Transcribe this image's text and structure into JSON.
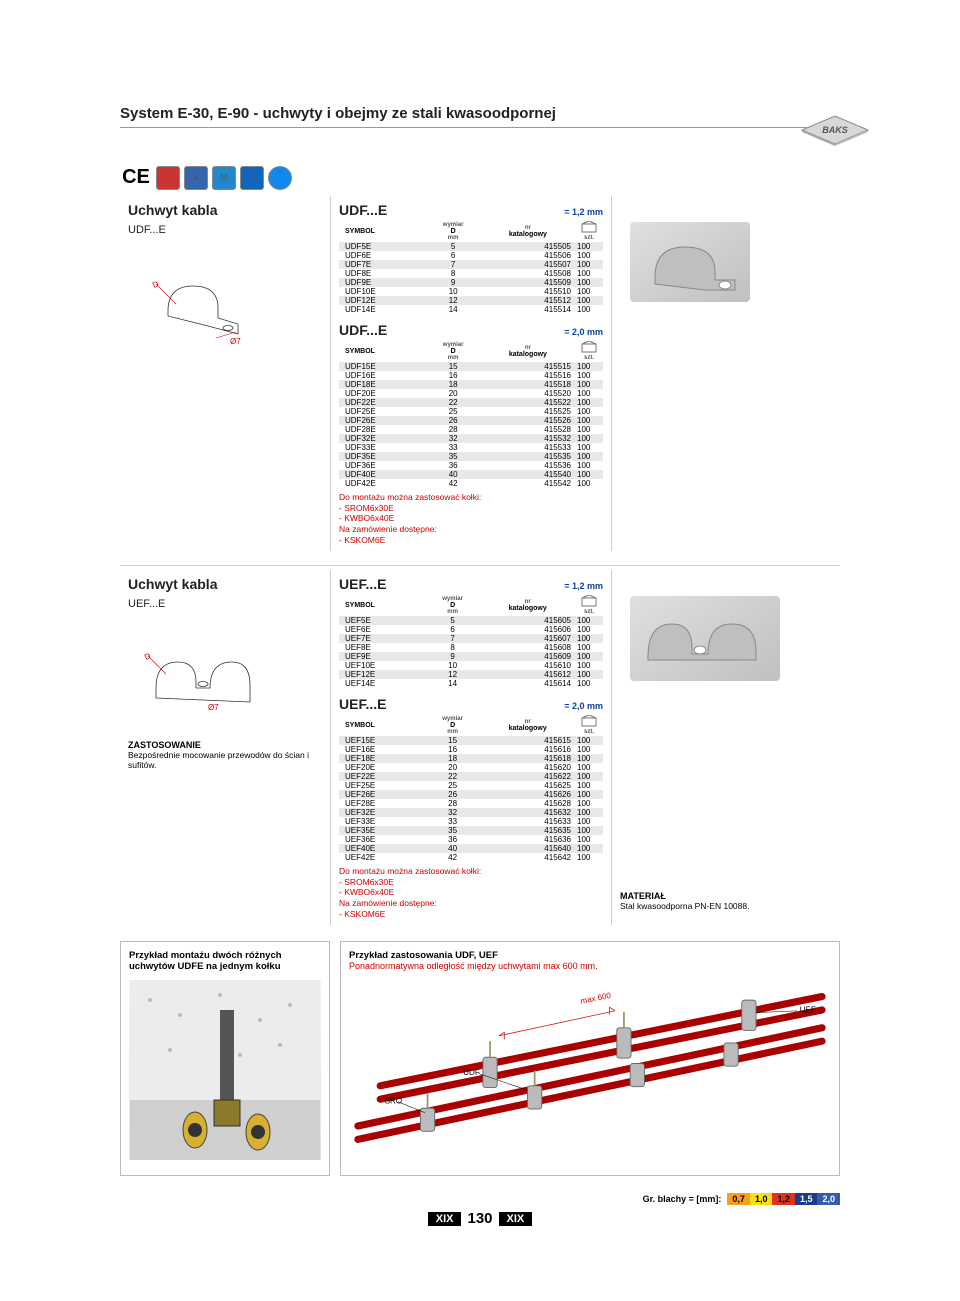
{
  "page_title": "System E-30, E-90 - uchwyty i obejmy ze stali kwasoodpornej",
  "brand": "BAKS",
  "cert_labels": [
    "CE",
    "",
    "▲",
    "M",
    "I",
    ""
  ],
  "product1": {
    "title": "Uchwyt kabla",
    "code": "UDF...E",
    "groups": [
      {
        "title": "UDF...E",
        "thickness": "= 1,2 mm",
        "thickness_color": "#1040a0",
        "headers": {
          "sym": "SYMBOL",
          "d_top": "wymiar",
          "d": "D",
          "d_sub": "mm",
          "kat_top": "nr",
          "kat": "katalogowy",
          "pack": "szt."
        },
        "rows": [
          {
            "sym": "UDF5E",
            "d": "5",
            "kat": "415505",
            "pack": "100"
          },
          {
            "sym": "UDF6E",
            "d": "6",
            "kat": "415506",
            "pack": "100"
          },
          {
            "sym": "UDF7E",
            "d": "7",
            "kat": "415507",
            "pack": "100"
          },
          {
            "sym": "UDF8E",
            "d": "8",
            "kat": "415508",
            "pack": "100"
          },
          {
            "sym": "UDF9E",
            "d": "9",
            "kat": "415509",
            "pack": "100"
          },
          {
            "sym": "UDF10E",
            "d": "10",
            "kat": "415510",
            "pack": "100"
          },
          {
            "sym": "UDF12E",
            "d": "12",
            "kat": "415512",
            "pack": "100"
          },
          {
            "sym": "UDF14E",
            "d": "14",
            "kat": "415514",
            "pack": "100"
          }
        ]
      },
      {
        "title": "UDF...E",
        "thickness": "= 2,0 mm",
        "thickness_color": "#1040a0",
        "rows": [
          {
            "sym": "UDF15E",
            "d": "15",
            "kat": "415515",
            "pack": "100"
          },
          {
            "sym": "UDF16E",
            "d": "16",
            "kat": "415516",
            "pack": "100"
          },
          {
            "sym": "UDF18E",
            "d": "18",
            "kat": "415518",
            "pack": "100"
          },
          {
            "sym": "UDF20E",
            "d": "20",
            "kat": "415520",
            "pack": "100"
          },
          {
            "sym": "UDF22E",
            "d": "22",
            "kat": "415522",
            "pack": "100"
          },
          {
            "sym": "UDF25E",
            "d": "25",
            "kat": "415525",
            "pack": "100"
          },
          {
            "sym": "UDF26E",
            "d": "26",
            "kat": "415526",
            "pack": "100"
          },
          {
            "sym": "UDF28E",
            "d": "28",
            "kat": "415528",
            "pack": "100"
          },
          {
            "sym": "UDF32E",
            "d": "32",
            "kat": "415532",
            "pack": "100"
          },
          {
            "sym": "UDF33E",
            "d": "33",
            "kat": "415533",
            "pack": "100"
          },
          {
            "sym": "UDF35E",
            "d": "35",
            "kat": "415535",
            "pack": "100"
          },
          {
            "sym": "UDF36E",
            "d": "36",
            "kat": "415536",
            "pack": "100"
          },
          {
            "sym": "UDF40E",
            "d": "40",
            "kat": "415540",
            "pack": "100"
          },
          {
            "sym": "UDF42E",
            "d": "42",
            "kat": "415542",
            "pack": "100"
          }
        ]
      }
    ],
    "notes": {
      "l1": "Do montażu można zastosować kołki:",
      "l2": "- SROM6x30E",
      "l3": "- KWBO6x40E",
      "l4": "Na zamówienie dostępne:",
      "l5": "- KSKOM6E"
    }
  },
  "product2": {
    "title": "Uchwyt kabla",
    "code": "UEF...E",
    "groups": [
      {
        "title": "UEF...E",
        "thickness": "= 1,2 mm",
        "thickness_color": "#1040a0",
        "rows": [
          {
            "sym": "UEF5E",
            "d": "5",
            "kat": "415605",
            "pack": "100"
          },
          {
            "sym": "UEF6E",
            "d": "6",
            "kat": "415606",
            "pack": "100"
          },
          {
            "sym": "UEF7E",
            "d": "7",
            "kat": "415607",
            "pack": "100"
          },
          {
            "sym": "UEF8E",
            "d": "8",
            "kat": "415608",
            "pack": "100"
          },
          {
            "sym": "UEF9E",
            "d": "9",
            "kat": "415609",
            "pack": "100"
          },
          {
            "sym": "UEF10E",
            "d": "10",
            "kat": "415610",
            "pack": "100"
          },
          {
            "sym": "UEF12E",
            "d": "12",
            "kat": "415612",
            "pack": "100"
          },
          {
            "sym": "UEF14E",
            "d": "14",
            "kat": "415614",
            "pack": "100"
          }
        ]
      },
      {
        "title": "UEF...E",
        "thickness": "= 2,0 mm",
        "thickness_color": "#1040a0",
        "rows": [
          {
            "sym": "UEF15E",
            "d": "15",
            "kat": "415615",
            "pack": "100"
          },
          {
            "sym": "UEF16E",
            "d": "16",
            "kat": "415616",
            "pack": "100"
          },
          {
            "sym": "UEF18E",
            "d": "18",
            "kat": "415618",
            "pack": "100"
          },
          {
            "sym": "UEF20E",
            "d": "20",
            "kat": "415620",
            "pack": "100"
          },
          {
            "sym": "UEF22E",
            "d": "22",
            "kat": "415622",
            "pack": "100"
          },
          {
            "sym": "UEF25E",
            "d": "25",
            "kat": "415625",
            "pack": "100"
          },
          {
            "sym": "UEF26E",
            "d": "26",
            "kat": "415626",
            "pack": "100"
          },
          {
            "sym": "UEF28E",
            "d": "28",
            "kat": "415628",
            "pack": "100"
          },
          {
            "sym": "UEF32E",
            "d": "32",
            "kat": "415632",
            "pack": "100"
          },
          {
            "sym": "UEF33E",
            "d": "33",
            "kat": "415633",
            "pack": "100"
          },
          {
            "sym": "UEF35E",
            "d": "35",
            "kat": "415635",
            "pack": "100"
          },
          {
            "sym": "UEF36E",
            "d": "36",
            "kat": "415636",
            "pack": "100"
          },
          {
            "sym": "UEF40E",
            "d": "40",
            "kat": "415640",
            "pack": "100"
          },
          {
            "sym": "UEF42E",
            "d": "42",
            "kat": "415642",
            "pack": "100"
          }
        ]
      }
    ],
    "notes": {
      "l1": "Do montażu można zastosować kołki:",
      "l2": "- SROM6x30E",
      "l3": "- KWBO6x40E",
      "l4": "Na zamówienie dostępne:",
      "l5": "- KSKOM6E"
    },
    "zast": {
      "hd": "ZASTOSOWANIE",
      "txt": "Bezpośrednie mocowanie przewodów do ścian i sufitów."
    },
    "mat": {
      "hd": "MATERIAŁ",
      "txt": "Stal kwasoodporna PN-EN 10088."
    }
  },
  "example_left": {
    "hd": "Przykład montażu dwóch różnych uchwytów UDFE na jednym kołku"
  },
  "example_right": {
    "hd": "Przykład zastosowania UDF, UEF",
    "red": "Ponadnormatywna odległość między uchwytami max 600 mm.",
    "labels": {
      "sro": "SRO",
      "udf": "UDF",
      "uef": "UEF",
      "max": "max 600"
    }
  },
  "footer_thickness": {
    "label": "Gr. blachy  = [mm]:",
    "chips": [
      {
        "t": "0,7",
        "bg": "#f7a11a"
      },
      {
        "t": "1,0",
        "bg": "#f7e01a"
      },
      {
        "t": "1,2",
        "bg": "#e03020"
      },
      {
        "t": "1,5",
        "bg": "#1a3a8a",
        "fg": "#fff"
      },
      {
        "t": "2,0",
        "bg": "#3a5aaa",
        "fg": "#fff"
      }
    ]
  },
  "page_num": {
    "roman": "XIX",
    "num": "130"
  },
  "table_headers": {
    "sym": "SYMBOL",
    "d_top": "wymiar",
    "d": "D",
    "d_sub": "mm",
    "kat_top": "nr",
    "kat": "katalogowy",
    "pack": "szt."
  }
}
